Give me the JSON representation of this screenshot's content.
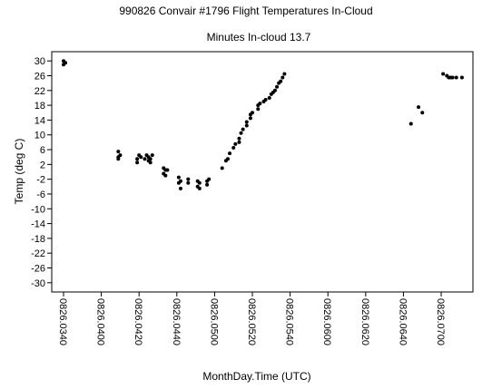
{
  "chart_data": {
    "type": "scatter",
    "title": "990826 Convair #1796 Flight Temperatures In-Cloud",
    "subtitle": "Minutes In-cloud 13.7",
    "xlabel": "MonthDay.Time (UTC)",
    "ylabel": "Temp (deg C)",
    "ylim": [
      32.5,
      -32.5
    ],
    "y_inverted": true,
    "y_ticks": [
      30,
      26,
      22,
      18,
      14,
      10,
      6,
      2,
      -2,
      -6,
      -10,
      -14,
      -18,
      -22,
      -26,
      -30
    ],
    "y_tick_labels": [
      "30",
      "26",
      "22",
      "18",
      "14",
      "10",
      "6",
      "2",
      "-2",
      "-6",
      "-10",
      "-14",
      "-18",
      "-22",
      "-26",
      "-30"
    ],
    "x_time_range": [
      "03:40",
      "07:12"
    ],
    "x_ticks": [
      "03:40",
      "04:00",
      "04:20",
      "04:40",
      "05:00",
      "05:20",
      "05:40",
      "06:00",
      "06:20",
      "06:40",
      "07:00"
    ],
    "x_tick_labels": [
      "0826.0340",
      "0826.0400",
      "0826.0420",
      "0826.0440",
      "0826.0500",
      "0826.0520",
      "0826.0540",
      "0826.0600",
      "0826.0620",
      "0826.0640",
      "0826.0700"
    ],
    "grid": false,
    "legend": "none",
    "marker_color": "#000000",
    "series": [
      {
        "points": [
          [
            "03:40",
            30.0
          ],
          [
            "03:40",
            29.0
          ],
          [
            "03:41",
            29.5
          ],
          [
            "04:09",
            5.5
          ],
          [
            "04:09",
            4.0
          ],
          [
            "04:09",
            3.5
          ],
          [
            "04:10",
            4.5
          ],
          [
            "04:19",
            3.5
          ],
          [
            "04:19",
            2.5
          ],
          [
            "04:20",
            4.5
          ],
          [
            "04:21",
            4.0
          ],
          [
            "04:23",
            3.5
          ],
          [
            "04:24",
            4.5
          ],
          [
            "04:25",
            3.0
          ],
          [
            "04:25",
            4.0
          ],
          [
            "04:26",
            2.5
          ],
          [
            "04:26",
            3.5
          ],
          [
            "04:27",
            4.5
          ],
          [
            "04:33",
            1.0
          ],
          [
            "04:33",
            -0.5
          ],
          [
            "04:34",
            0.5
          ],
          [
            "04:34",
            -1.0
          ],
          [
            "04:35",
            0.5
          ],
          [
            "04:41",
            -3.0
          ],
          [
            "04:41",
            -1.5
          ],
          [
            "04:42",
            -4.5
          ],
          [
            "04:42",
            -2.5
          ],
          [
            "04:46",
            -2.0
          ],
          [
            "04:46",
            -3.0
          ],
          [
            "04:51",
            -2.5
          ],
          [
            "04:51",
            -4.0
          ],
          [
            "04:52",
            -4.5
          ],
          [
            "04:52",
            -3.0
          ],
          [
            "04:56",
            -2.5
          ],
          [
            "04:56",
            -3.5
          ],
          [
            "04:57",
            -2.0
          ],
          [
            "05:04",
            1.0
          ],
          [
            "05:06",
            3.0
          ],
          [
            "05:07",
            3.5
          ],
          [
            "05:08",
            5.0
          ],
          [
            "05:10",
            6.5
          ],
          [
            "05:11",
            7.5
          ],
          [
            "05:13",
            9.0
          ],
          [
            "05:13",
            8.0
          ],
          [
            "05:14",
            10.5
          ],
          [
            "05:15",
            11.5
          ],
          [
            "05:17",
            12.5
          ],
          [
            "05:17",
            13.5
          ],
          [
            "05:19",
            14.5
          ],
          [
            "05:19",
            15.5
          ],
          [
            "05:20",
            16.0
          ],
          [
            "05:23",
            17.0
          ],
          [
            "05:23",
            18.0
          ],
          [
            "05:24",
            18.5
          ],
          [
            "05:26",
            19.0
          ],
          [
            "05:27",
            19.5
          ],
          [
            "05:29",
            20.0
          ],
          [
            "05:30",
            21.0
          ],
          [
            "05:31",
            21.5
          ],
          [
            "05:32",
            22.0
          ],
          [
            "05:33",
            23.0
          ],
          [
            "05:34",
            24.0
          ],
          [
            "05:35",
            24.5
          ],
          [
            "05:36",
            25.5
          ],
          [
            "05:37",
            26.5
          ],
          [
            "06:44",
            13.0
          ],
          [
            "06:48",
            17.5
          ],
          [
            "06:50",
            16.0
          ],
          [
            "07:01",
            26.5
          ],
          [
            "07:03",
            26.0
          ],
          [
            "07:04",
            25.5
          ],
          [
            "07:05",
            25.5
          ],
          [
            "07:06",
            25.5
          ],
          [
            "07:08",
            25.5
          ],
          [
            "07:11",
            25.5
          ]
        ]
      }
    ]
  }
}
